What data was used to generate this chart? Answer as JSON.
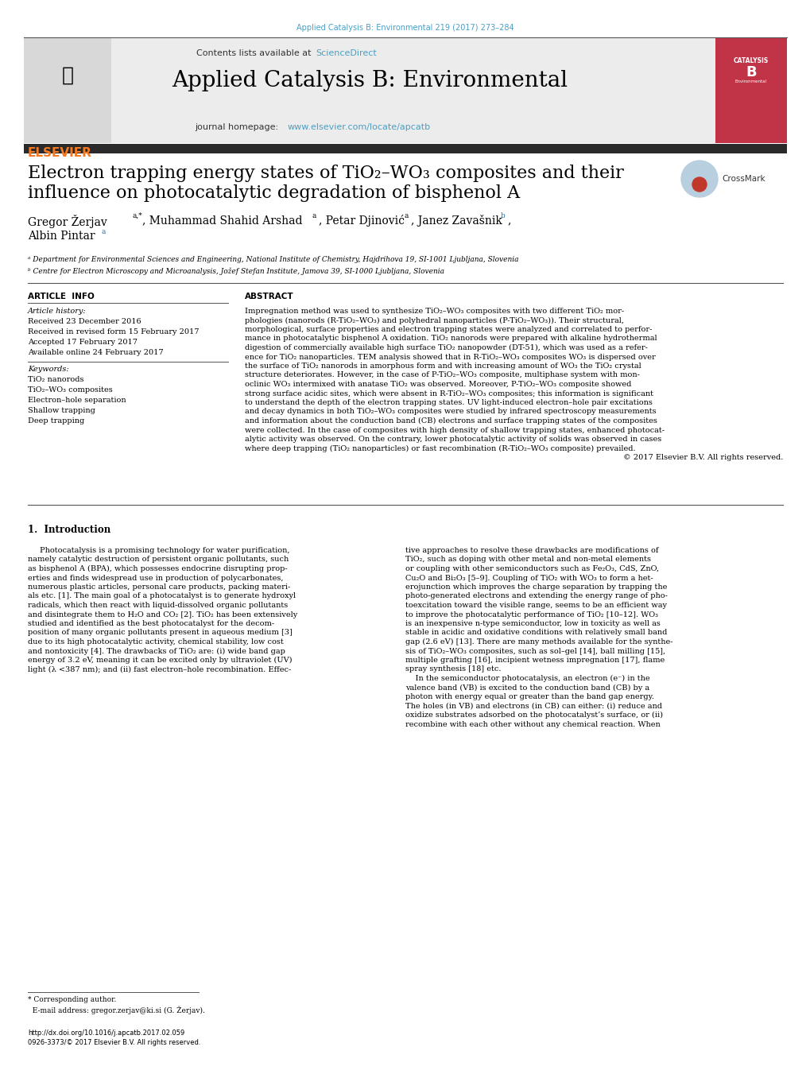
{
  "page_width": 10.2,
  "page_height": 13.51,
  "dpi": 100,
  "bg_color": "#ffffff",
  "top_link_color": "#4a9fc4",
  "top_link_text": "Applied Catalysis B: Environmental 219 (2017) 273–284",
  "header_bg": "#ececec",
  "header_title": "Applied Catalysis B: Environmental",
  "header_contents_text": "Contents lists available at ",
  "header_sciencedirect": "ScienceDirect",
  "header_sciencedirect_color": "#4a9fc4",
  "header_journal_label": "journal homepage: ",
  "header_journal_url": "www.elsevier.com/locate/apcatb",
  "header_url_color": "#4a9fc4",
  "elsevier_color": "#f47920",
  "dark_bar_color": "#2a2a2a",
  "cover_color": "#c13448",
  "article_title_line1": "Electron trapping energy states of TiO₂–WO₃ composites and their",
  "article_title_line2": "influence on photocatalytic degradation of bisphenol A",
  "author_line1_parts": [
    {
      "text": "Gregor Žerjav",
      "sup": "a,*",
      "sep": ", "
    },
    {
      "text": "Muhammad Shahid Arshad",
      "sup": "a",
      "sep": ", "
    },
    {
      "text": "Petar Djinović",
      "sup": "a",
      "sep": ", "
    },
    {
      "text": "Janez Zavašnik",
      "sup": "b",
      "sep": ","
    }
  ],
  "author_line2": "Albin Pintar",
  "author_line2_sup": "a",
  "affil_a": "ᵃ Department for Environmental Sciences and Engineering, National Institute of Chemistry, Hajdrihova 19, SI-1001 Ljubljana, Slovenia",
  "affil_b": "ᵇ Centre for Electron Microscopy and Microanalysis, Jožef Stefan Institute, Jamova 39, SI-1000 Ljubljana, Slovenia",
  "article_info_header": "ARTICLE  INFO",
  "abstract_header": "ABSTRACT",
  "article_history_label": "Article history:",
  "received_1": "Received 23 December 2016",
  "received_2": "Received in revised form 15 February 2017",
  "accepted": "Accepted 17 February 2017",
  "available": "Available online 24 February 2017",
  "keywords_label": "Keywords:",
  "keywords": [
    "TiO₂ nanorods",
    "TiO₂–WO₃ composites",
    "Electron–hole separation",
    "Shallow trapping",
    "Deep trapping"
  ],
  "abstract_lines": [
    "Impregnation method was used to synthesize TiO₂–WO₃ composites with two different TiO₂ mor-",
    "phologies (nanorods (R-TiO₂–WO₃) and polyhedral nanoparticles (P-TiO₂–WO₃)). Their structural,",
    "morphological, surface properties and electron trapping states were analyzed and correlated to perfor-",
    "mance in photocatalytic bisphenol A oxidation. TiO₂ nanorods were prepared with alkaline hydrothermal",
    "digestion of commercially available high surface TiO₂ nanopowder (DT-51), which was used as a refer-",
    "ence for TiO₂ nanoparticles. TEM analysis showed that in R-TiO₂–WO₃ composites WO₃ is dispersed over",
    "the surface of TiO₂ nanorods in amorphous form and with increasing amount of WO₃ the TiO₂ crystal",
    "structure deteriorates. However, in the case of P-TiO₂–WO₃ composite, multiphase system with mon-",
    "oclinic WO₃ intermixed with anatase TiO₂ was observed. Moreover, P-TiO₂–WO₃ composite showed",
    "strong surface acidic sites, which were absent in R-TiO₂–WO₃ composites; this information is significant",
    "to understand the depth of the electron trapping states. UV light-induced electron–hole pair excitations",
    "and decay dynamics in both TiO₂–WO₃ composites were studied by infrared spectroscopy measurements",
    "and information about the conduction band (CB) electrons and surface trapping states of the composites",
    "were collected. In the case of composites with high density of shallow trapping states, enhanced photocat-",
    "alytic activity was observed. On the contrary, lower photocatalytic activity of solids was observed in cases",
    "where deep trapping (TiO₂ nanoparticles) or fast recombination (R-TiO₂–WO₃ composite) prevailed.",
    "© 2017 Elsevier B.V. All rights reserved."
  ],
  "intro_header": "1.  Introduction",
  "intro_col1_lines": [
    "Photocatalysis is a promising technology for water purification,",
    "namely catalytic destruction of persistent organic pollutants, such",
    "as bisphenol A (BPA), which possesses endocrine disrupting prop-",
    "erties and finds widespread use in production of polycarbonates,",
    "numerous plastic articles, personal care products, packing materi-",
    "als etc. [1]. The main goal of a photocatalyst is to generate hydroxyl",
    "radicals, which then react with liquid-dissolved organic pollutants",
    "and disintegrate them to H₂O and CO₂ [2]. TiO₂ has been extensively",
    "studied and identified as the best photocatalyst for the decom-",
    "position of many organic pollutants present in aqueous medium [3]",
    "due to its high photocatalytic activity, chemical stability, low cost",
    "and nontoxicity [4]. The drawbacks of TiO₂ are: (i) wide band gap",
    "energy of 3.2 eV, meaning it can be excited only by ultraviolet (UV)",
    "light (λ <387 nm); and (ii) fast electron–hole recombination. Effec-"
  ],
  "intro_col2_lines": [
    "tive approaches to resolve these drawbacks are modifications of",
    "TiO₂, such as doping with other metal and non-metal elements",
    "or coupling with other semiconductors such as Fe₂O₃, CdS, ZnO,",
    "Cu₂O and Bi₂O₃ [5–9]. Coupling of TiO₂ with WO₃ to form a het-",
    "erojunction which improves the charge separation by trapping the",
    "photo-generated electrons and extending the energy range of pho-",
    "toexcitation toward the visible range, seems to be an efficient way",
    "to improve the photocatalytic performance of TiO₂ [10–12]. WO₃",
    "is an inexpensive n-type semiconductor, low in toxicity as well as",
    "stable in acidic and oxidative conditions with relatively small band",
    "gap (2.6 eV) [13]. There are many methods available for the synthe-",
    "sis of TiO₂–WO₃ composites, such as sol–gel [14], ball milling [15],",
    "multiple grafting [16], incipient wetness impregnation [17], flame",
    "spray synthesis [18] etc.",
    "    In the semiconductor photocatalysis, an electron (e⁻) in the",
    "valence band (VB) is excited to the conduction band (CB) by a",
    "photon with energy equal or greater than the band gap energy.",
    "The holes (in VB) and electrons (in CB) can either: (i) reduce and",
    "oxidize substrates adsorbed on the photocatalyst’s surface, or (ii)",
    "recombine with each other without any chemical reaction. When"
  ],
  "footnote_line1": "* Corresponding author.",
  "footnote_line2": "  E-mail address: gregor.zerjav@ki.si (G. Žerjav).",
  "copyright_line1": "http://dx.doi.org/10.1016/j.apcatb.2017.02.059",
  "copyright_line2": "0926-3373/© 2017 Elsevier B.V. All rights reserved."
}
